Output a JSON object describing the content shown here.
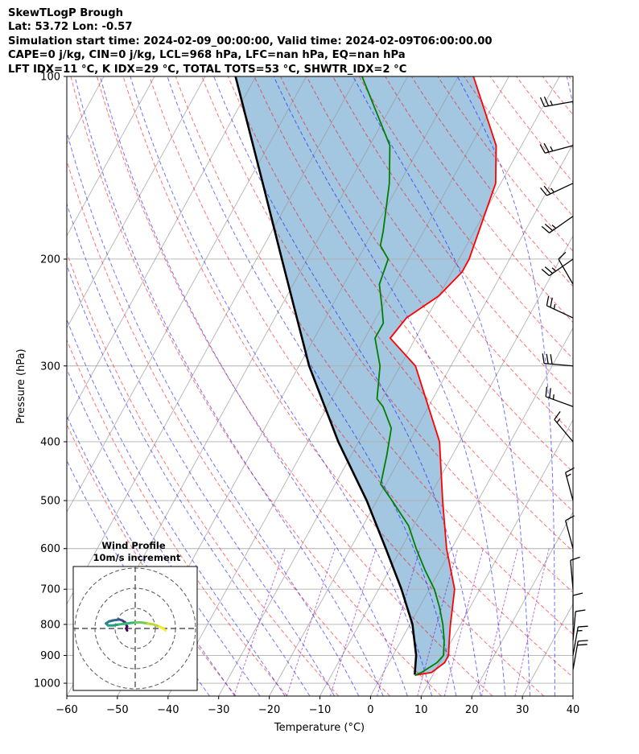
{
  "header": {
    "lines": [
      "SkewTLogP Brough",
      "Lat: 53.72   Lon: -0.57",
      "Simulation start time: 2024-02-09_00:00:00, Valid time: 2024-02-09T06:00:00.00",
      "CAPE=0 j/kg, CIN=0 j/kg, LCL=968 hPa, LFC=nan hPa, EQ=nan hPa",
      "LFT IDX=11 °C, K IDX=29 °C, TOTAL TOTS=53 °C, SHWTR_IDX=2 °C"
    ]
  },
  "colors": {
    "temperature": "#ff0000",
    "dewpoint": "#008000",
    "parcel": "#000000",
    "cape_fill": "#7fb0d6",
    "dry_adiabat": "#ff0000",
    "moist_adiabat": "#0000ff",
    "mixing_ratio": "#8000c0",
    "isotherm": "#999999"
  },
  "chart_data": {
    "type": "line",
    "subtype": "skew-T log-P",
    "xlabel": "Temperature (°C)",
    "ylabel": "Pressure (hPa)",
    "xlim": [
      -60,
      40
    ],
    "ylim": [
      1050,
      100
    ],
    "y_scale": "log",
    "grid": true,
    "x_ticks": [
      -60,
      -50,
      -40,
      -30,
      -20,
      -10,
      0,
      10,
      20,
      30,
      40
    ],
    "x_tick_labels": [
      "−60",
      "−50",
      "−40",
      "−30",
      "−20",
      "−10",
      "0",
      "10",
      "20",
      "30",
      "40"
    ],
    "y_ticks": [
      1000,
      900,
      800,
      700,
      600,
      500,
      400,
      300,
      200,
      100
    ],
    "y_tick_labels": [
      "1000",
      "900",
      "800",
      "700",
      "600",
      "500",
      "400",
      "300",
      "200",
      "100"
    ],
    "series": [
      {
        "key": "temperature",
        "points": [
          [
            970,
            6.5
          ],
          [
            960,
            9.5
          ],
          [
            925,
            11
          ],
          [
            900,
            11
          ],
          [
            850,
            9.5
          ],
          [
            800,
            8
          ],
          [
            700,
            5
          ],
          [
            600,
            -1
          ],
          [
            500,
            -7
          ],
          [
            400,
            -14
          ],
          [
            300,
            -27
          ],
          [
            270,
            -35
          ],
          [
            250,
            -34
          ],
          [
            230,
            -30
          ],
          [
            210,
            -28
          ],
          [
            200,
            -28
          ],
          [
            150,
            -31
          ],
          [
            130,
            -35
          ],
          [
            100,
            -47
          ]
        ]
      },
      {
        "key": "dewpoint",
        "points": [
          [
            970,
            6.5
          ],
          [
            960,
            7.5
          ],
          [
            925,
            9.5
          ],
          [
            900,
            10
          ],
          [
            850,
            8.5
          ],
          [
            800,
            6.5
          ],
          [
            750,
            4
          ],
          [
            700,
            1
          ],
          [
            650,
            -3
          ],
          [
            600,
            -7
          ],
          [
            550,
            -11
          ],
          [
            500,
            -17
          ],
          [
            470,
            -21
          ],
          [
            420,
            -23
          ],
          [
            380,
            -25
          ],
          [
            350,
            -29
          ],
          [
            340,
            -31
          ],
          [
            300,
            -34
          ],
          [
            270,
            -38
          ],
          [
            255,
            -38
          ],
          [
            240,
            -40
          ],
          [
            220,
            -43
          ],
          [
            200,
            -44
          ],
          [
            190,
            -47
          ],
          [
            180,
            -48
          ],
          [
            150,
            -52
          ],
          [
            130,
            -56
          ],
          [
            100,
            -69
          ]
        ]
      },
      {
        "key": "parcel",
        "points": [
          [
            968,
            6.4
          ],
          [
            900,
            4.6
          ],
          [
            800,
            0.5
          ],
          [
            700,
            -5.5
          ],
          [
            600,
            -13
          ],
          [
            500,
            -22
          ],
          [
            400,
            -34
          ],
          [
            300,
            -48
          ],
          [
            200,
            -65
          ],
          [
            150,
            -77
          ],
          [
            100,
            -94
          ]
        ]
      }
    ],
    "wind_barbs": [
      {
        "p": 950,
        "speed_kt": 20,
        "dir_deg": 10
      },
      {
        "p": 900,
        "speed_kt": 15,
        "dir_deg": 10
      },
      {
        "p": 850,
        "speed_kt": 10,
        "dir_deg": 5
      },
      {
        "p": 800,
        "speed_kt": 10,
        "dir_deg": 0
      },
      {
        "p": 700,
        "speed_kt": 10,
        "dir_deg": 355
      },
      {
        "p": 600,
        "speed_kt": 10,
        "dir_deg": 345
      },
      {
        "p": 500,
        "speed_kt": 15,
        "dir_deg": 345
      },
      {
        "p": 400,
        "speed_kt": 15,
        "dir_deg": 320
      },
      {
        "p": 350,
        "speed_kt": 25,
        "dir_deg": 290
      },
      {
        "p": 300,
        "speed_kt": 30,
        "dir_deg": 275
      },
      {
        "p": 250,
        "speed_kt": 25,
        "dir_deg": 295
      },
      {
        "p": 220,
        "speed_kt": 10,
        "dir_deg": 330
      },
      {
        "p": 200,
        "speed_kt": 25,
        "dir_deg": 235
      },
      {
        "p": 170,
        "speed_kt": 25,
        "dir_deg": 235
      },
      {
        "p": 150,
        "speed_kt": 25,
        "dir_deg": 245
      },
      {
        "p": 130,
        "speed_kt": 25,
        "dir_deg": 255
      },
      {
        "p": 110,
        "speed_kt": 25,
        "dir_deg": 260
      }
    ],
    "inset": {
      "title_line1": "Wind Profile",
      "title_line2": "10m/s increment",
      "rings": 3,
      "hodograph": [
        [
          -4,
          -1
        ],
        [
          -4.5,
          0
        ],
        [
          -4,
          1
        ],
        [
          -4.5,
          2
        ],
        [
          -5,
          3
        ],
        [
          -6.5,
          4
        ],
        [
          -8,
          4.5
        ],
        [
          -9,
          4.3
        ],
        [
          -11,
          4
        ],
        [
          -13,
          3.5
        ],
        [
          -14.5,
          2.5
        ],
        [
          -13.5,
          1.5
        ],
        [
          -11,
          1.5
        ],
        [
          -8,
          2
        ],
        [
          -4,
          2.5
        ],
        [
          0,
          3
        ],
        [
          3,
          3
        ],
        [
          6,
          2.5
        ],
        [
          9,
          2
        ],
        [
          12,
          1
        ],
        [
          14,
          0
        ],
        [
          15,
          -1
        ]
      ]
    }
  }
}
